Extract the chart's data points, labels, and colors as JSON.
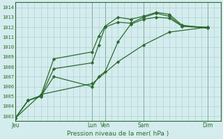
{
  "title": "",
  "xlabel": "Pression niveau de la mer( hPa )",
  "ylabel": "",
  "bg_color": "#d4ecee",
  "grid_color": "#a8cccc",
  "line_color": "#2d6b2d",
  "ylim": [
    1002.5,
    1014.5
  ],
  "yticks": [
    1003,
    1004,
    1005,
    1006,
    1007,
    1008,
    1009,
    1010,
    1011,
    1012,
    1013,
    1014
  ],
  "xlim": [
    0,
    96
  ],
  "day_positions": [
    0,
    36,
    42,
    60,
    90
  ],
  "day_labels": [
    "Jeu",
    "Lun",
    "Ven",
    "Sam",
    "Dim"
  ],
  "vline_positions": [
    0,
    36,
    42,
    60,
    90
  ],
  "series": [
    {
      "x": [
        0,
        6,
        12,
        18,
        36,
        39,
        42,
        48,
        54,
        60,
        66,
        72,
        78,
        90
      ],
      "y": [
        1002.8,
        1004.6,
        1005.1,
        1008.8,
        1009.5,
        1011.1,
        1012.1,
        1013.0,
        1012.8,
        1013.1,
        1013.5,
        1013.3,
        1012.2,
        1011.9
      ]
    },
    {
      "x": [
        0,
        6,
        12,
        18,
        36,
        39,
        42,
        48,
        54,
        60,
        66,
        72,
        78,
        90
      ],
      "y": [
        1002.8,
        1004.6,
        1005.0,
        1007.8,
        1008.4,
        1010.2,
        1012.0,
        1012.5,
        1012.4,
        1013.0,
        1013.4,
        1013.1,
        1012.1,
        1011.9
      ]
    },
    {
      "x": [
        0,
        6,
        12,
        18,
        36,
        39,
        42,
        48,
        54,
        60,
        66,
        72,
        78,
        90
      ],
      "y": [
        1002.8,
        1004.6,
        1005.0,
        1007.0,
        1006.0,
        1007.0,
        1007.5,
        1010.5,
        1012.3,
        1012.8,
        1013.0,
        1012.9,
        1012.1,
        1012.0
      ]
    },
    {
      "x": [
        0,
        12,
        36,
        48,
        60,
        72,
        90
      ],
      "y": [
        1002.8,
        1005.2,
        1006.3,
        1008.5,
        1010.2,
        1011.5,
        1012.0
      ]
    }
  ],
  "marker": "D",
  "marker_size": 2.2,
  "line_width": 0.9
}
